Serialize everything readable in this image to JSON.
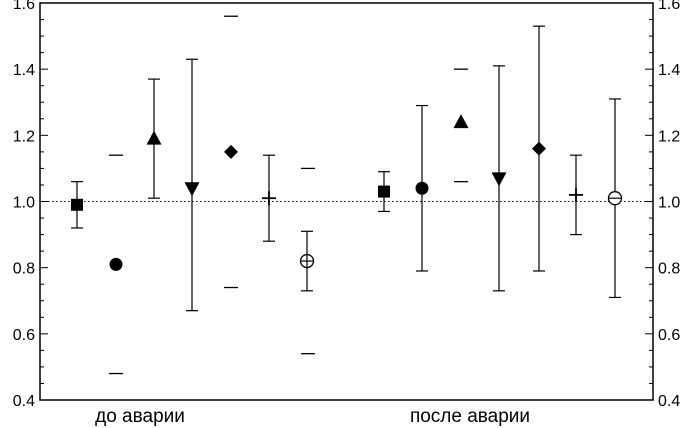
{
  "chart_data": {
    "type": "scatter",
    "subtype": "error-bar",
    "title": "",
    "xlabel": "",
    "ylabel": "",
    "ylim": [
      0.4,
      1.6
    ],
    "y_ticks": [
      "0.4",
      "0.6",
      "0.8",
      "1.0",
      "1.2",
      "1.4",
      "1.6"
    ],
    "y_axis_both_sides": true,
    "reference_line": {
      "y": 1.0,
      "style": "dotted"
    },
    "grid": false,
    "legend": "none",
    "groups": [
      {
        "label": "до аварии",
        "points": [
          {
            "marker": "square",
            "y": 0.99,
            "low": 0.92,
            "high": 1.06
          },
          {
            "marker": "circle",
            "y": 0.81,
            "low": 0.48,
            "high": 1.14,
            "bars": "dashes"
          },
          {
            "marker": "triangle-up",
            "y": 1.19,
            "low": 1.01,
            "high": 1.37
          },
          {
            "marker": "triangle-down",
            "y": 1.04,
            "low": 0.67,
            "high": 1.43
          },
          {
            "marker": "diamond",
            "y": 1.15,
            "low": 0.74,
            "high": 1.56,
            "bars": "dashes"
          },
          {
            "marker": "plus",
            "y": 1.01,
            "low": 0.88,
            "high": 1.14
          },
          {
            "marker": "circle-plus",
            "y": 0.82,
            "low": 0.73,
            "high": 0.91
          },
          {
            "marker": "none",
            "y": 0.82,
            "low": 0.54,
            "high": 1.1,
            "bars": "dashes"
          }
        ]
      },
      {
        "label": "после аварии",
        "points": [
          {
            "marker": "square",
            "y": 1.03,
            "low": 0.97,
            "high": 1.09
          },
          {
            "marker": "circle",
            "y": 1.04,
            "low": 0.79,
            "high": 1.29
          },
          {
            "marker": "triangle-up",
            "y": 1.24,
            "low": 1.06,
            "high": 1.4,
            "bars": "dashes"
          },
          {
            "marker": "triangle-down",
            "y": 1.07,
            "low": 0.73,
            "high": 1.41
          },
          {
            "marker": "diamond",
            "y": 1.16,
            "low": 0.79,
            "high": 1.53
          },
          {
            "marker": "plus",
            "y": 1.02,
            "low": 0.9,
            "high": 1.14
          },
          {
            "marker": "circle-minus",
            "y": 1.01,
            "low": 0.71,
            "high": 1.31
          }
        ]
      }
    ]
  }
}
